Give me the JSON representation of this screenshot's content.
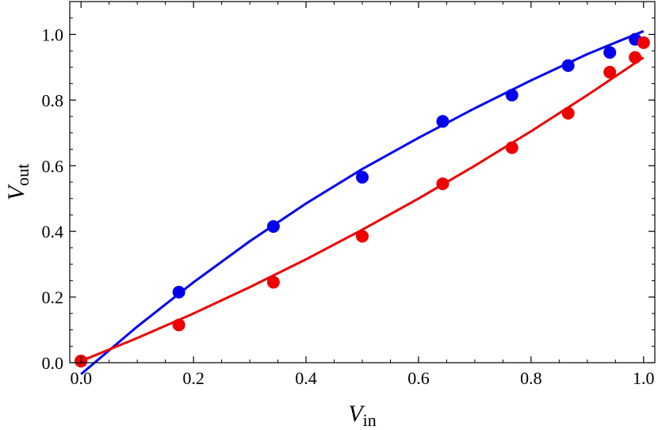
{
  "chart_data": {
    "type": "scatter",
    "title": "",
    "xlabel": {
      "base": "V",
      "sub": "in"
    },
    "ylabel": {
      "base": "V",
      "sub": "out"
    },
    "xlim": [
      -0.02,
      1.02
    ],
    "ylim": [
      0.0,
      1.1
    ],
    "xticks": [
      "0.0",
      "0.2",
      "0.4",
      "0.6",
      "0.8",
      "1.0"
    ],
    "yticks": [
      "0.0",
      "0.2",
      "0.4",
      "0.6",
      "0.8",
      "1.0"
    ],
    "grid": false,
    "series": [
      {
        "color": "#0000ee",
        "points": [
          [
            0.0,
            0.005
          ],
          [
            0.174,
            0.215
          ],
          [
            0.342,
            0.415
          ],
          [
            0.5,
            0.565
          ],
          [
            0.643,
            0.735
          ],
          [
            0.766,
            0.815
          ],
          [
            0.866,
            0.905
          ],
          [
            0.94,
            0.945
          ],
          [
            0.985,
            0.985
          ]
        ],
        "fit": [
          [
            0.0,
            -0.035
          ],
          [
            0.1,
            0.11
          ],
          [
            0.2,
            0.245
          ],
          [
            0.3,
            0.37
          ],
          [
            0.4,
            0.485
          ],
          [
            0.5,
            0.59
          ],
          [
            0.6,
            0.685
          ],
          [
            0.7,
            0.775
          ],
          [
            0.8,
            0.86
          ],
          [
            0.9,
            0.94
          ],
          [
            1.0,
            1.01
          ]
        ]
      },
      {
        "color": "#ee0000",
        "points": [
          [
            0.0,
            0.005
          ],
          [
            0.174,
            0.115
          ],
          [
            0.342,
            0.245
          ],
          [
            0.5,
            0.385
          ],
          [
            0.643,
            0.545
          ],
          [
            0.766,
            0.655
          ],
          [
            0.866,
            0.76
          ],
          [
            0.94,
            0.885
          ],
          [
            0.985,
            0.93
          ],
          [
            1.0,
            0.975
          ]
        ],
        "fit": [
          [
            0.0,
            0.005
          ],
          [
            0.1,
            0.075
          ],
          [
            0.2,
            0.15
          ],
          [
            0.3,
            0.23
          ],
          [
            0.4,
            0.315
          ],
          [
            0.5,
            0.405
          ],
          [
            0.6,
            0.5
          ],
          [
            0.7,
            0.6
          ],
          [
            0.8,
            0.705
          ],
          [
            0.9,
            0.815
          ],
          [
            1.0,
            0.93
          ]
        ]
      }
    ]
  }
}
